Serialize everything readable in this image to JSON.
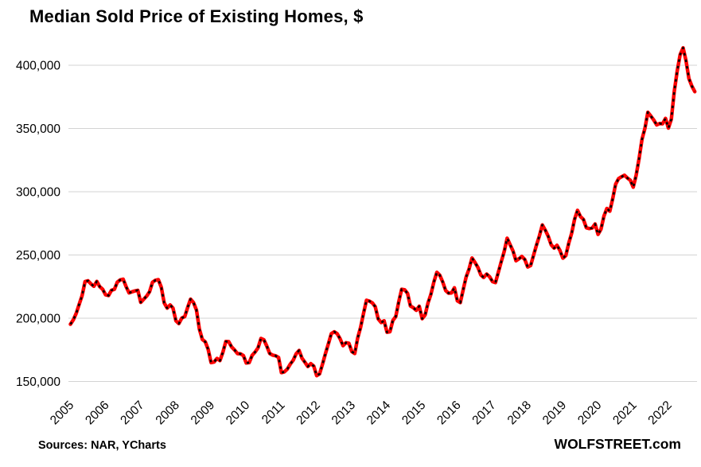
{
  "title": "Median Sold Price of Existing Homes, $",
  "footer": {
    "sources": "Sources: NAR, YCharts",
    "site": "WOLFSTREET.com"
  },
  "colors": {
    "line": "#ff0000",
    "dash_overlay": "#000000",
    "gridline": "#d3d3d3",
    "text": "#000000",
    "background": "#ffffff"
  },
  "chart_data": {
    "type": "line",
    "title": "Median Sold Price of Existing Homes, $",
    "xlabel": "",
    "ylabel": "",
    "frequency": "monthly",
    "x_start": "2005-01",
    "x_end": "2022-10",
    "x_tick_labels": [
      "2005",
      "2006",
      "2007",
      "2008",
      "2009",
      "2010",
      "2011",
      "2012",
      "2013",
      "2014",
      "2015",
      "2016",
      "2017",
      "2018",
      "2019",
      "2020",
      "2021",
      "2022"
    ],
    "y_ticks": [
      150000,
      200000,
      250000,
      300000,
      350000,
      400000
    ],
    "ylim": [
      140000,
      422000
    ],
    "grid": "horizontal",
    "legend": "none",
    "line_style": "solid red with black dash overlay",
    "series": [
      {
        "name": "Median sold price of existing homes, $",
        "color": "#ff0000",
        "values": [
          195200,
          198800,
          204000,
          211200,
          217900,
          229000,
          229600,
          227200,
          225200,
          229100,
          225000,
          222900,
          218500,
          217900,
          222100,
          222900,
          228500,
          230300,
          230900,
          225000,
          220000,
          220900,
          221600,
          222100,
          212500,
          215000,
          217500,
          221000,
          228500,
          230000,
          230500,
          224500,
          212000,
          208000,
          210500,
          208000,
          198000,
          195800,
          200100,
          201300,
          208600,
          215100,
          212400,
          206500,
          191300,
          183300,
          181300,
          175400,
          164900,
          165400,
          168200,
          166500,
          173000,
          181600,
          181500,
          177300,
          174900,
          172000,
          171900,
          170500,
          164600,
          164900,
          170700,
          173300,
          176600,
          184000,
          183000,
          178000,
          172100,
          170800,
          170300,
          169000,
          157000,
          157600,
          159800,
          163700,
          166800,
          171900,
          174500,
          168400,
          165200,
          161800,
          164100,
          162200,
          154600,
          156000,
          163600,
          172000,
          179800,
          187800,
          189300,
          187800,
          183800,
          178300,
          180600,
          180200,
          173600,
          172100,
          184300,
          192800,
          203900,
          214200,
          213500,
          212100,
          209100,
          199500,
          196600,
          198000,
          188900,
          189300,
          198200,
          201300,
          212900,
          222900,
          222500,
          219600,
          209700,
          208300,
          206200,
          209500,
          199600,
          202600,
          212100,
          219000,
          228700,
          236300,
          234000,
          228700,
          221900,
          219800,
          220000,
          224100,
          213800,
          212300,
          222700,
          232500,
          238900,
          247600,
          244100,
          240200,
          234200,
          232200,
          234900,
          232800,
          228900,
          228200,
          236600,
          244800,
          252800,
          263300,
          258100,
          253100,
          245400,
          247000,
          248800,
          246500,
          240500,
          241700,
          249800,
          257900,
          265100,
          273800,
          269600,
          264800,
          258100,
          255400,
          257700,
          253600,
          247500,
          249500,
          259400,
          267300,
          278200,
          285300,
          280400,
          278200,
          271500,
          270900,
          271300,
          274500,
          266300,
          270400,
          280700,
          286800,
          284600,
          294400,
          305900,
          310400,
          311800,
          313000,
          310800,
          309200,
          303600,
          313000,
          326300,
          341600,
          350300,
          362800,
          359900,
          356700,
          352800,
          353900,
          353700,
          358000,
          350300,
          357300,
          379300,
          395500,
          408400,
          413800,
          403800,
          389500,
          383500,
          379100
        ]
      }
    ]
  }
}
